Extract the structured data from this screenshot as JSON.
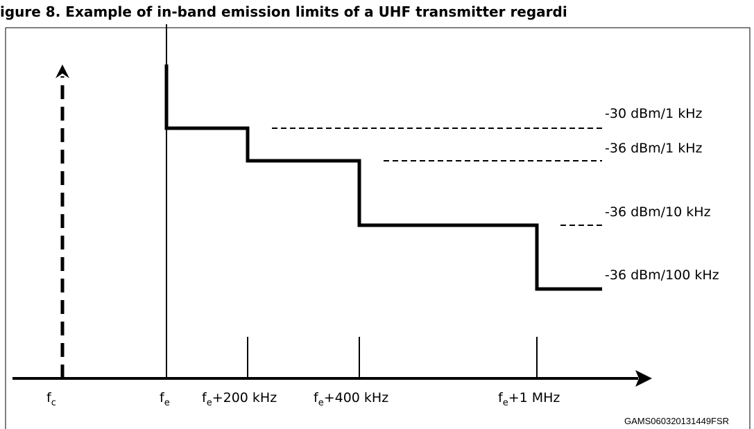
{
  "title": "igure 8. Example of in-band emission limits of a UHF transmitter regardi",
  "reference": "GAMS060320131449FSR",
  "x_labels": [
    {
      "main": "f",
      "sub": "c",
      "rest": ""
    },
    {
      "main": "f",
      "sub": "e",
      "rest": ""
    },
    {
      "main": "f",
      "sub": "e",
      "rest": "+200 kHz"
    },
    {
      "main": "f",
      "sub": "e",
      "rest": "+400 kHz"
    },
    {
      "main": "f",
      "sub": "e",
      "rest": "+1 MHz"
    }
  ],
  "levels": [
    {
      "label": "-30 dBm/1 kHz"
    },
    {
      "label": "-36 dBm/1 kHz"
    },
    {
      "label": "-36 dBm/10 kHz"
    },
    {
      "label": "-36 dBm/100 kHz"
    }
  ],
  "colors": {
    "line": "#000000",
    "background": "#ffffff"
  }
}
